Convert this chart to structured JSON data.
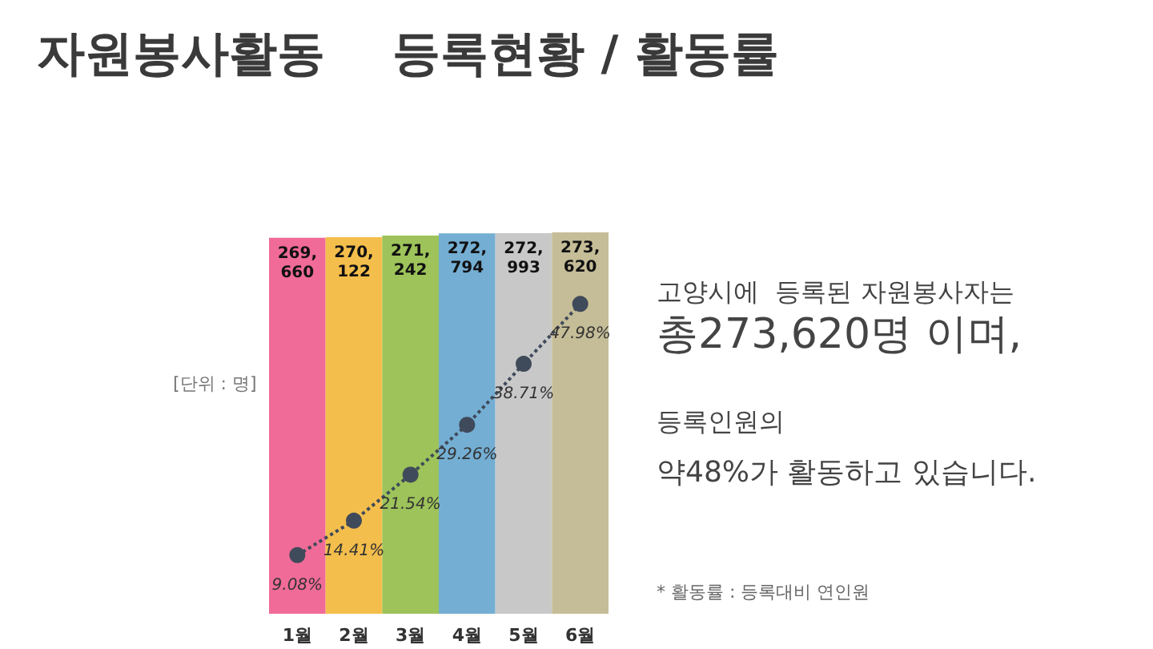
{
  "chart_data": {
    "type": "bar",
    "title": "자원봉사활동    등록현황 / 활동률",
    "categories": [
      "1월",
      "2월",
      "3월",
      "4월",
      "5월",
      "6월"
    ],
    "series": [
      {
        "values": [
          269660,
          270122,
          271242,
          272794,
          272993,
          273620
        ],
        "value_labels": [
          "269,660",
          "270,122",
          "271,242",
          "272,794",
          "272,993",
          "273,620"
        ],
        "colors": [
          "#f06b97",
          "#f4be4c",
          "#9dc35a",
          "#74aed3",
          "#c8c8c8",
          "#c5bd97"
        ]
      },
      {
        "type": "line",
        "axis": "y2",
        "color": "#3f4a5a",
        "line_style": "dotted",
        "marker": "circle",
        "values": [
          9.08,
          14.41,
          21.54,
          29.26,
          38.71,
          47.98
        ],
        "value_labels": [
          "9.08%",
          "14.41%",
          "21.54%",
          "29.26%",
          "38.71%",
          "47.98%"
        ]
      }
    ],
    "annotations": [
      "[단위 : 명]",
      "고양시에  등록된 자원봉사자는",
      "총273,620명 이며,",
      "등록인원의",
      "약48%가 활동하고 있습니다.",
      "* 활동률 : 등록대비 연인원"
    ]
  }
}
